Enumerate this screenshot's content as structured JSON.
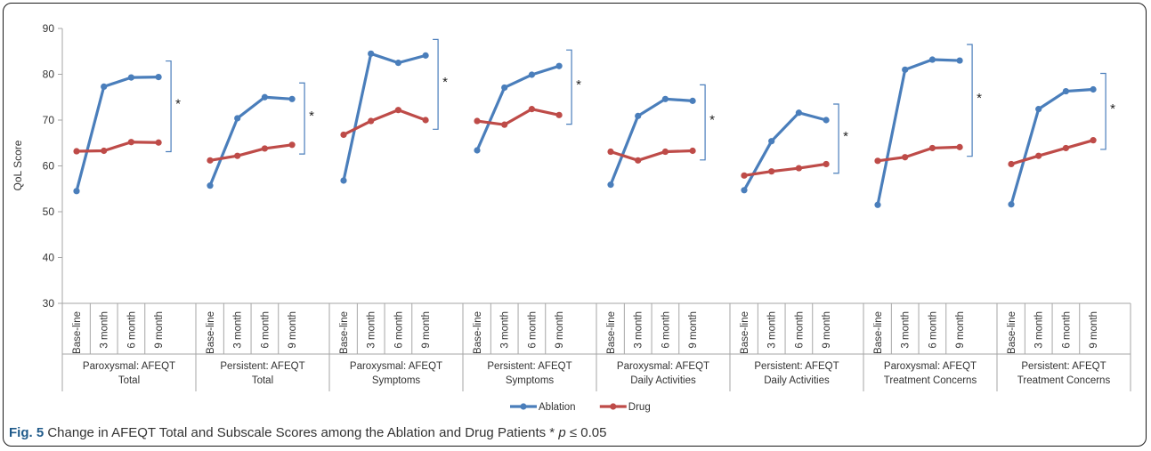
{
  "chart_data": {
    "type": "line",
    "ylabel": "QoL Score",
    "ylim": [
      30,
      90
    ],
    "yticks": [
      30,
      40,
      50,
      60,
      70,
      80,
      90
    ],
    "grid": false,
    "legend_position": "bottom",
    "x_tick_labels": [
      "Base-line",
      "3  month",
      "6  month",
      "9  month"
    ],
    "significance_marker": "*",
    "groups": [
      "Paroxysmal: AFEQT\nTotal",
      "Persistent: AFEQT\nTotal",
      "Paroxysmal: AFEQT\nSymptoms",
      "Persistent: AFEQT\nSymptoms",
      "Paroxysmal: AFEQT\nDaily Activities",
      "Persistent: AFEQT\nDaily Activities",
      "Paroxysmal: AFEQT\nTreatment Concerns",
      "Persistent: AFEQT\nTreatment Concerns"
    ],
    "series": [
      {
        "name": "Ablation",
        "color": "#4a7ebb",
        "values": [
          [
            54.5,
            77.3,
            79.3,
            79.4
          ],
          [
            55.7,
            70.4,
            75.0,
            74.6
          ],
          [
            56.8,
            84.5,
            82.5,
            84.1
          ],
          [
            63.4,
            77.1,
            79.9,
            81.8
          ],
          [
            55.9,
            70.9,
            74.6,
            74.2
          ],
          [
            54.7,
            65.4,
            71.6,
            70.0
          ],
          [
            51.5,
            81.0,
            83.2,
            83.0
          ],
          [
            51.6,
            72.4,
            76.3,
            76.7
          ]
        ]
      },
      {
        "name": "Drug",
        "color": "#be4b48",
        "values": [
          [
            63.2,
            63.3,
            65.2,
            65.1
          ],
          [
            61.2,
            62.2,
            63.8,
            64.6
          ],
          [
            66.8,
            69.8,
            72.2,
            70.0
          ],
          [
            69.8,
            69.0,
            72.4,
            71.1
          ],
          [
            63.1,
            61.2,
            63.1,
            63.3
          ],
          [
            57.9,
            58.8,
            59.5,
            60.4
          ],
          [
            61.1,
            61.9,
            63.9,
            64.1
          ],
          [
            60.4,
            62.2,
            63.9,
            65.6
          ]
        ]
      }
    ]
  },
  "caption": {
    "label": "Fig. 5",
    "text_main": " Change in AFEQT Total and Subscale Scores among the Ablation and Drug Patients * ",
    "p_symbol": "p",
    "text_tail": " ≤ 0.05"
  }
}
